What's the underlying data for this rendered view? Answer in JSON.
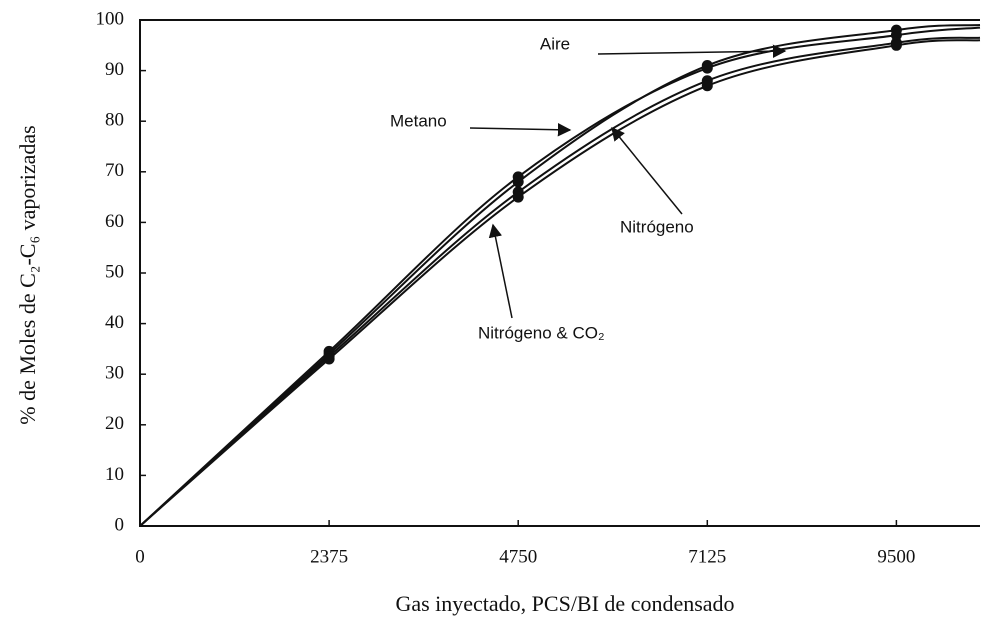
{
  "chart_data": {
    "type": "line",
    "xlabel": "Gas inyectado, PCS/BI de condensado",
    "ylabel": "% de Moles de C₂-C₆ vaporizadas",
    "x": [
      0,
      2375,
      4750,
      7125,
      9500,
      10550
    ],
    "series": [
      {
        "name": "Aire",
        "color": "#111111",
        "values": [
          0,
          34,
          68,
          91,
          98,
          99
        ]
      },
      {
        "name": "Metano",
        "color": "#111111",
        "values": [
          0,
          34.5,
          69,
          90.5,
          97,
          98.5
        ]
      },
      {
        "name": "Nitrógeno",
        "color": "#111111",
        "values": [
          0,
          33.5,
          66,
          88,
          95.5,
          96.5
        ]
      },
      {
        "name": "Nitrógeno & CO₂",
        "color": "#111111",
        "values": [
          0,
          33,
          65,
          87,
          95,
          96
        ]
      }
    ],
    "xlim": [
      0,
      10550
    ],
    "ylim": [
      0,
      100
    ],
    "xticks": [
      0,
      2375,
      4750,
      7125,
      9500
    ],
    "yticks": [
      0,
      10,
      20,
      30,
      40,
      50,
      60,
      70,
      80,
      90,
      100
    ],
    "grid": false
  }
}
